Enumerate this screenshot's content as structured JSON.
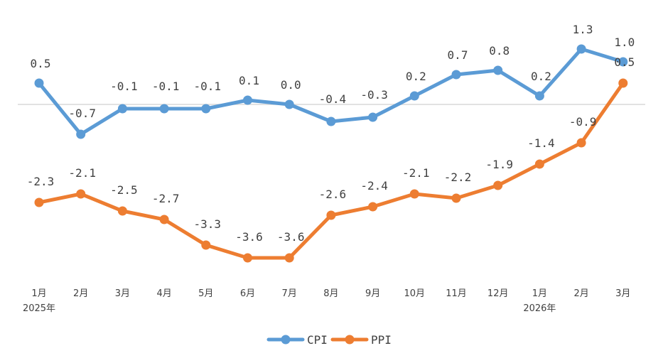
{
  "chart_data": {
    "type": "line",
    "categories": [
      "1月",
      "2月",
      "3月",
      "4月",
      "5月",
      "6月",
      "7月",
      "8月",
      "9月",
      "10月",
      "11月",
      "12月",
      "1月",
      "2月",
      "3月"
    ],
    "year_labels": [
      "2025年",
      "",
      "",
      "",
      "",
      "",
      "",
      "",
      "",
      "",
      "",
      "",
      "2026年",
      "",
      ""
    ],
    "series": [
      {
        "name": "CPI",
        "color": "#5B9BD5",
        "values": [
          0.5,
          -0.7,
          -0.1,
          -0.1,
          -0.1,
          0.1,
          0.0,
          -0.4,
          -0.3,
          0.2,
          0.7,
          0.8,
          0.2,
          1.3,
          1.0
        ],
        "labels": [
          "0.5",
          "-0.7",
          "-0.1",
          "-0.1",
          "-0.1",
          "0.1",
          "0.0",
          "-0.4",
          "-0.3",
          "0.2",
          "0.7",
          "0.8",
          "0.2",
          "1.3",
          "1.0"
        ]
      },
      {
        "name": "PPI",
        "color": "#ED7D31",
        "values": [
          -2.3,
          -2.1,
          -2.5,
          -2.7,
          -3.3,
          -3.6,
          -3.6,
          -2.6,
          -2.4,
          -2.1,
          -2.2,
          -1.9,
          -1.4,
          -0.9,
          0.5
        ],
        "labels": [
          "-2.3",
          "-2.1",
          "-2.5",
          "-2.7",
          "-3.3",
          "-3.6",
          "-3.6",
          "-2.6",
          "-2.4",
          "-2.1",
          "-2.2",
          "-1.9",
          "-1.4",
          "-0.9",
          "0.5"
        ]
      }
    ],
    "title": "",
    "xlabel": "",
    "ylabel": "",
    "ylim": [
      -4.2,
      2.0
    ],
    "zero_line": true,
    "grid": false,
    "legend": "bottom-center",
    "axis_line_color": "#D9D9D9"
  }
}
